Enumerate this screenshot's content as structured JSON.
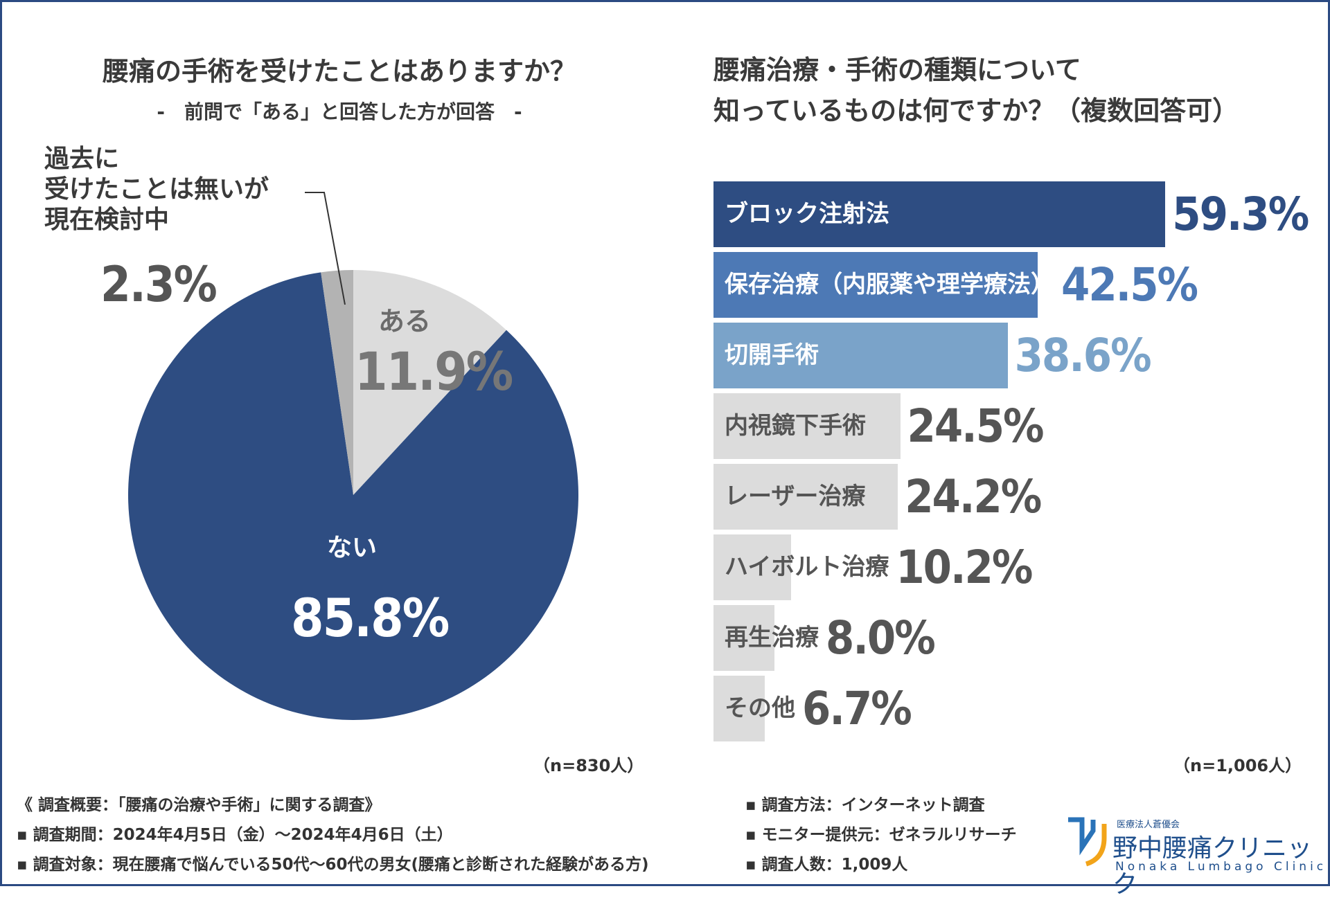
{
  "colors": {
    "navy": "#2e4d82",
    "medium_blue": "#4d79b5",
    "light_blue": "#7aa3c9",
    "light_gray": "#dcdcdc",
    "mid_gray": "#b3b3b3",
    "text_dark": "#333333"
  },
  "chart_data": [
    {
      "type": "pie",
      "title": "腰痛の手術を受けたことはありますか？",
      "subtitle": "-　前問で「ある」と回答した方が回答　-",
      "n_note": "（n=830人）",
      "slices": [
        {
          "name": "ある",
          "value": 11.9,
          "label": "11.9%"
        },
        {
          "name": "ない",
          "value": 85.8,
          "label": "85.8%"
        },
        {
          "name": "過去に受けたことは無いが現在検討中",
          "value": 2.3,
          "label": "2.3%"
        }
      ],
      "callout_lines": [
        "過去に",
        "受けたことは無いが",
        "現在検討中"
      ]
    },
    {
      "type": "bar",
      "orientation": "horizontal",
      "title_lines": [
        "腰痛治療・手術の種類について",
        "知っているものは何ですか？（複数回答可）"
      ],
      "n_note": "（n=1,006人）",
      "xlim": [
        0,
        100
      ],
      "categories": [
        "ブロック注射法",
        "保存治療（内服薬や理学療法）",
        "切開手術",
        "内視鏡下手術",
        "レーザー治療",
        "ハイボルト治療",
        "再生治療",
        "その他"
      ],
      "values": [
        59.3,
        42.5,
        38.6,
        24.5,
        24.2,
        10.2,
        8.0,
        6.7
      ],
      "value_labels": [
        "59.3%",
        "42.5%",
        "38.6%",
        "24.5%",
        "24.2%",
        "10.2%",
        "8.0%",
        "6.7%"
      ]
    }
  ],
  "footer": {
    "left": [
      "《 調査概要：「腰痛の治療や手術」に関する調査》",
      "▪ 調査期間：2024年4月5日（金）〜2024年4月6日（土）",
      "▪ 調査対象：現在腰痛で悩んでいる50代〜60代の男女(腰痛と診断された経験がある方)"
    ],
    "right": [
      "▪ 調査方法：インターネット調査",
      "▪ モニター提供元：ゼネラルリサーチ",
      "▪ 調査人数：1,009人"
    ]
  },
  "logo": {
    "org": "医療法人蒼優会",
    "name": "野中腰痛クリニック",
    "roman": "Nonaka Lumbago Clinic"
  }
}
